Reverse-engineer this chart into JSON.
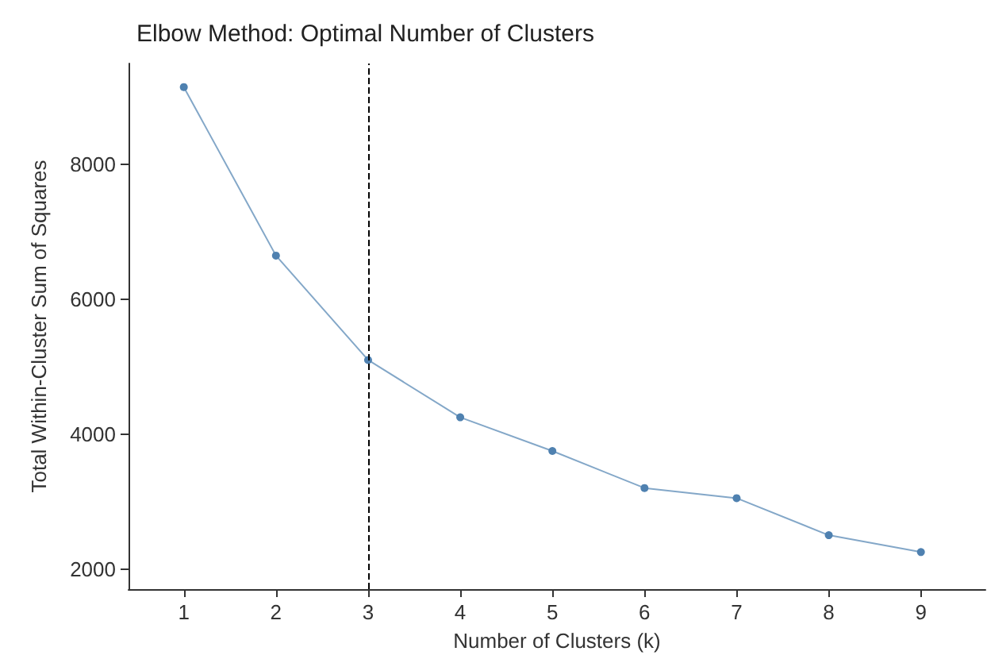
{
  "chart_data": {
    "type": "line",
    "title": "Elbow Method: Optimal Number of Clusters",
    "xlabel": "Number of Clusters (k)",
    "ylabel": "Total Within-Cluster Sum of Squares",
    "x": [
      1,
      2,
      3,
      4,
      5,
      6,
      7,
      8,
      9
    ],
    "series": [
      {
        "color": "#4f81b0",
        "values": [
          9150,
          6650,
          5100,
          4250,
          3750,
          3200,
          3050,
          2500,
          2250
        ]
      }
    ],
    "xlim": [
      0.4,
      9.7
    ],
    "xticks": [
      1,
      2,
      3,
      4,
      5,
      6,
      7,
      8,
      9
    ],
    "ylim": [
      1700,
      9500
    ],
    "yticks": [
      2000,
      4000,
      6000,
      8000
    ],
    "ref_lines": [
      {
        "axis": "x",
        "value": 3,
        "color": "#000000",
        "line_style": "dashed"
      }
    ],
    "marker": "circle",
    "grid": false
  }
}
